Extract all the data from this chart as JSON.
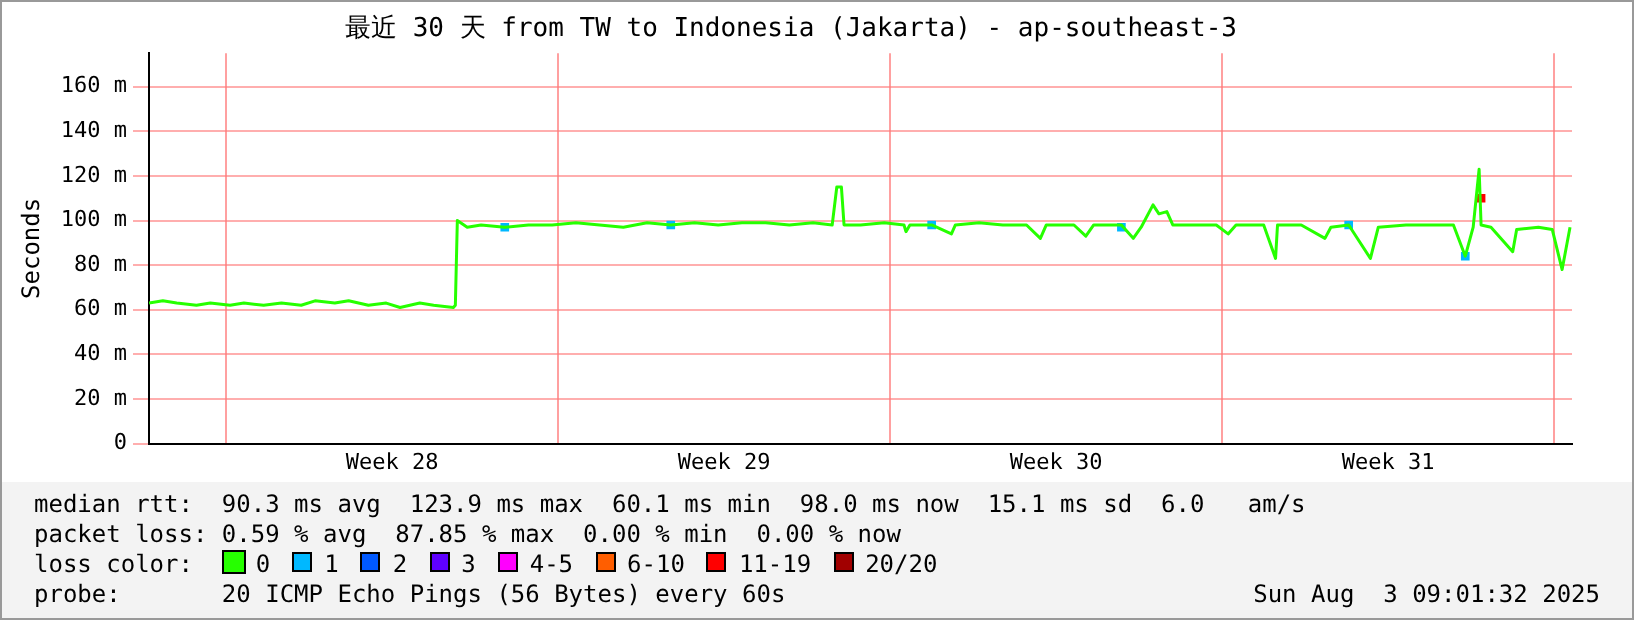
{
  "chart_data": {
    "type": "line",
    "title": "最近 30 天 from TW to Indonesia (Jakarta) - ap-southeast-3",
    "ylabel": "Seconds",
    "legend_title": "loss color:",
    "legend": "bottom",
    "xlim": [
      "2025-07-04T09:00",
      "2025-08-03T09:00"
    ],
    "ylim": [
      0,
      175
    ],
    "xticks": [
      {
        "value": "2025-07-06",
        "label": null
      },
      {
        "value": "2025-07-09T12:00",
        "label": "Week 28"
      },
      {
        "value": "2025-07-13",
        "label": null
      },
      {
        "value": "2025-07-16T12:00",
        "label": "Week 29"
      },
      {
        "value": "2025-07-20",
        "label": null
      },
      {
        "value": "2025-07-23T12:00",
        "label": "Week 30"
      },
      {
        "value": "2025-07-27",
        "label": null
      },
      {
        "value": "2025-07-30T12:00",
        "label": "Week 31"
      },
      {
        "value": "2025-08-03",
        "label": null
      }
    ],
    "yticks": [
      {
        "value": 0,
        "label": "0"
      },
      {
        "value": 20,
        "label": "20 m"
      },
      {
        "value": 40,
        "label": "40 m"
      },
      {
        "value": 60,
        "label": "60 m"
      },
      {
        "value": 80,
        "label": "80 m"
      },
      {
        "value": 100,
        "label": "100 m"
      },
      {
        "value": 120,
        "label": "120 m"
      },
      {
        "value": 140,
        "label": "140 m"
      },
      {
        "value": 160,
        "label": "160 m"
      }
    ],
    "grid": true,
    "marker": "none",
    "series": [
      {
        "name": "0",
        "color": "#26ff00",
        "x": [
          "2025-07-04T09:00",
          "2025-07-04T16:00",
          "2025-07-04T23:00",
          "2025-07-05T09:00",
          "2025-07-05T16:00",
          "2025-07-06T02:00",
          "2025-07-06T09:00",
          "2025-07-06T19:00",
          "2025-07-07T04:00",
          "2025-07-07T14:00",
          "2025-07-07T21:00",
          "2025-07-08T07:00",
          "2025-07-08T14:00",
          "2025-07-09T00:00",
          "2025-07-09T09:00",
          "2025-07-09T16:00",
          "2025-07-10T02:00",
          "2025-07-10T09:00",
          "2025-07-10T19:00",
          "2025-07-10T20:00",
          "2025-07-10T21:00",
          "2025-07-11T02:00",
          "2025-07-11T09:00",
          "2025-07-11T21:00",
          "2025-07-12T09:00",
          "2025-07-12T21:00",
          "2025-07-13T09:00",
          "2025-07-13T21:00",
          "2025-07-14T09:00",
          "2025-07-14T21:00",
          "2025-07-15T09:00",
          "2025-07-15T21:00",
          "2025-07-16T09:00",
          "2025-07-16T21:00",
          "2025-07-17T09:00",
          "2025-07-17T21:00",
          "2025-07-18T09:00",
          "2025-07-18T18:40",
          "2025-07-18T21:00",
          "2025-07-18T23:20",
          "2025-07-19T00:40",
          "2025-07-19T09:00",
          "2025-07-19T21:00",
          "2025-07-20T07:00",
          "2025-07-20T08:00",
          "2025-07-20T10:00",
          "2025-07-20T21:00",
          "2025-07-21T07:00",
          "2025-07-21T09:00",
          "2025-07-21T21:00",
          "2025-07-22T09:00",
          "2025-07-22T21:00",
          "2025-07-23T04:00",
          "2025-07-23T07:00",
          "2025-07-23T21:00",
          "2025-07-24T03:00",
          "2025-07-24T07:00",
          "2025-07-24T21:00",
          "2025-07-25T03:00",
          "2025-07-25T07:00",
          "2025-07-25T13:00",
          "2025-07-25T16:00",
          "2025-07-25T20:00",
          "2025-07-25T23:00",
          "2025-07-26T09:00",
          "2025-07-26T21:00",
          "2025-07-27T03:00",
          "2025-07-27T07:00",
          "2025-07-27T21:00",
          "2025-07-28T03:00",
          "2025-07-28T04:00",
          "2025-07-28T16:00",
          "2025-07-29T04:00",
          "2025-07-29T07:00",
          "2025-07-29T16:00",
          "2025-07-30T03:00",
          "2025-07-30T07:00",
          "2025-07-30T21:00",
          "2025-07-31T09:00",
          "2025-07-31T21:00",
          "2025-08-01T03:00",
          "2025-08-01T07:00",
          "2025-08-01T10:00",
          "2025-08-01T11:00",
          "2025-08-01T16:00",
          "2025-08-02T03:00",
          "2025-08-02T05:00",
          "2025-08-02T16:00",
          "2025-08-02T23:00",
          "2025-08-03T04:00",
          "2025-08-03T08:00"
        ],
        "values": [
          63,
          64,
          63,
          62,
          63,
          62,
          63,
          62,
          63,
          62,
          64,
          63,
          64,
          62,
          63,
          61,
          63,
          62,
          61,
          62,
          100,
          97,
          98,
          97,
          98,
          98,
          99,
          98,
          97,
          99,
          98,
          99,
          98,
          99,
          99,
          98,
          99,
          98,
          115,
          115,
          98,
          98,
          99,
          98,
          95,
          98,
          98,
          94,
          98,
          99,
          98,
          98,
          92,
          98,
          98,
          93,
          98,
          98,
          92,
          97,
          107,
          103,
          104,
          98,
          98,
          98,
          94,
          98,
          98,
          83,
          98,
          98,
          92,
          97,
          98,
          83,
          97,
          98,
          98,
          98,
          84,
          97,
          123,
          98,
          97,
          86,
          96,
          97,
          96,
          78,
          97
        ]
      },
      {
        "name": "1",
        "color": "#00b8ff",
        "type": "scatter",
        "marker": "square",
        "x": [
          "2025-07-11T21:00",
          "2025-07-15T09:00",
          "2025-07-20T21:00",
          "2025-07-24T21:00",
          "2025-07-29T16:00",
          "2025-08-01T03:00"
        ],
        "values": [
          97,
          98,
          98,
          97,
          98,
          84
        ]
      },
      {
        "name": "2",
        "color": "#0059ff",
        "type": "scatter"
      },
      {
        "name": "3",
        "color": "#5e00ff",
        "type": "scatter"
      },
      {
        "name": "4-5",
        "color": "#ff00fe",
        "type": "scatter"
      },
      {
        "name": "6-10",
        "color": "#ff5e00",
        "type": "scatter"
      },
      {
        "name": "11-19",
        "color": "#ff0000",
        "type": "scatter",
        "marker": "square",
        "x": [
          "2025-08-01T11:00"
        ],
        "values": [
          110
        ]
      },
      {
        "name": "20/20",
        "color": "#a10000",
        "type": "scatter"
      }
    ],
    "annotations": [
      "median rtt:  90.3 ms avg  123.9 ms max  60.1 ms min  98.0 ms now  15.1 ms sd  6.0   am/s",
      "packet loss: 0.59 % avg  87.85 % max  0.00 % min  0.00 % now",
      "probe:       20 ICMP Echo Pings (56 Bytes) every 60s",
      "Sun Aug  3 09:01:32 2025"
    ]
  }
}
